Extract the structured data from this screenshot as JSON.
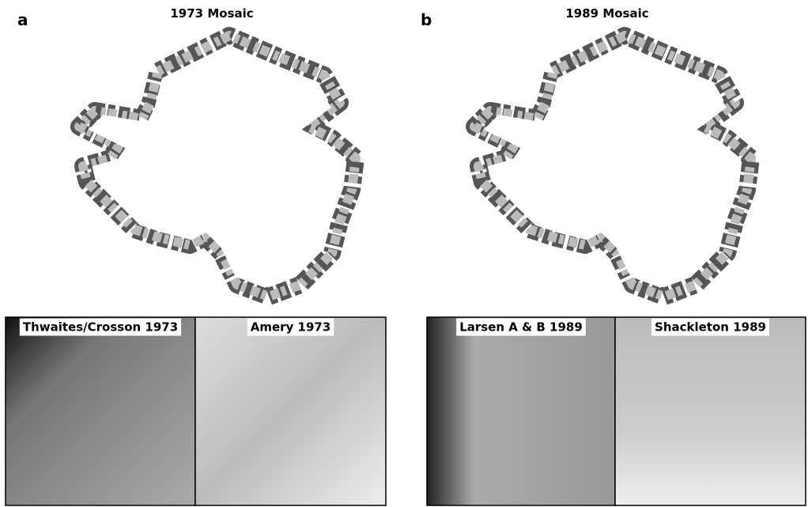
{
  "panels": [
    {
      "letter": "a",
      "title": "1973 Mosaic",
      "insets": [
        "Thwaites/Crosson 1973",
        "Amery 1973"
      ]
    },
    {
      "letter": "b",
      "title": "1989 Mosaic",
      "insets": [
        "Larsen A & B 1989",
        "Shackleton 1989"
      ]
    }
  ]
}
